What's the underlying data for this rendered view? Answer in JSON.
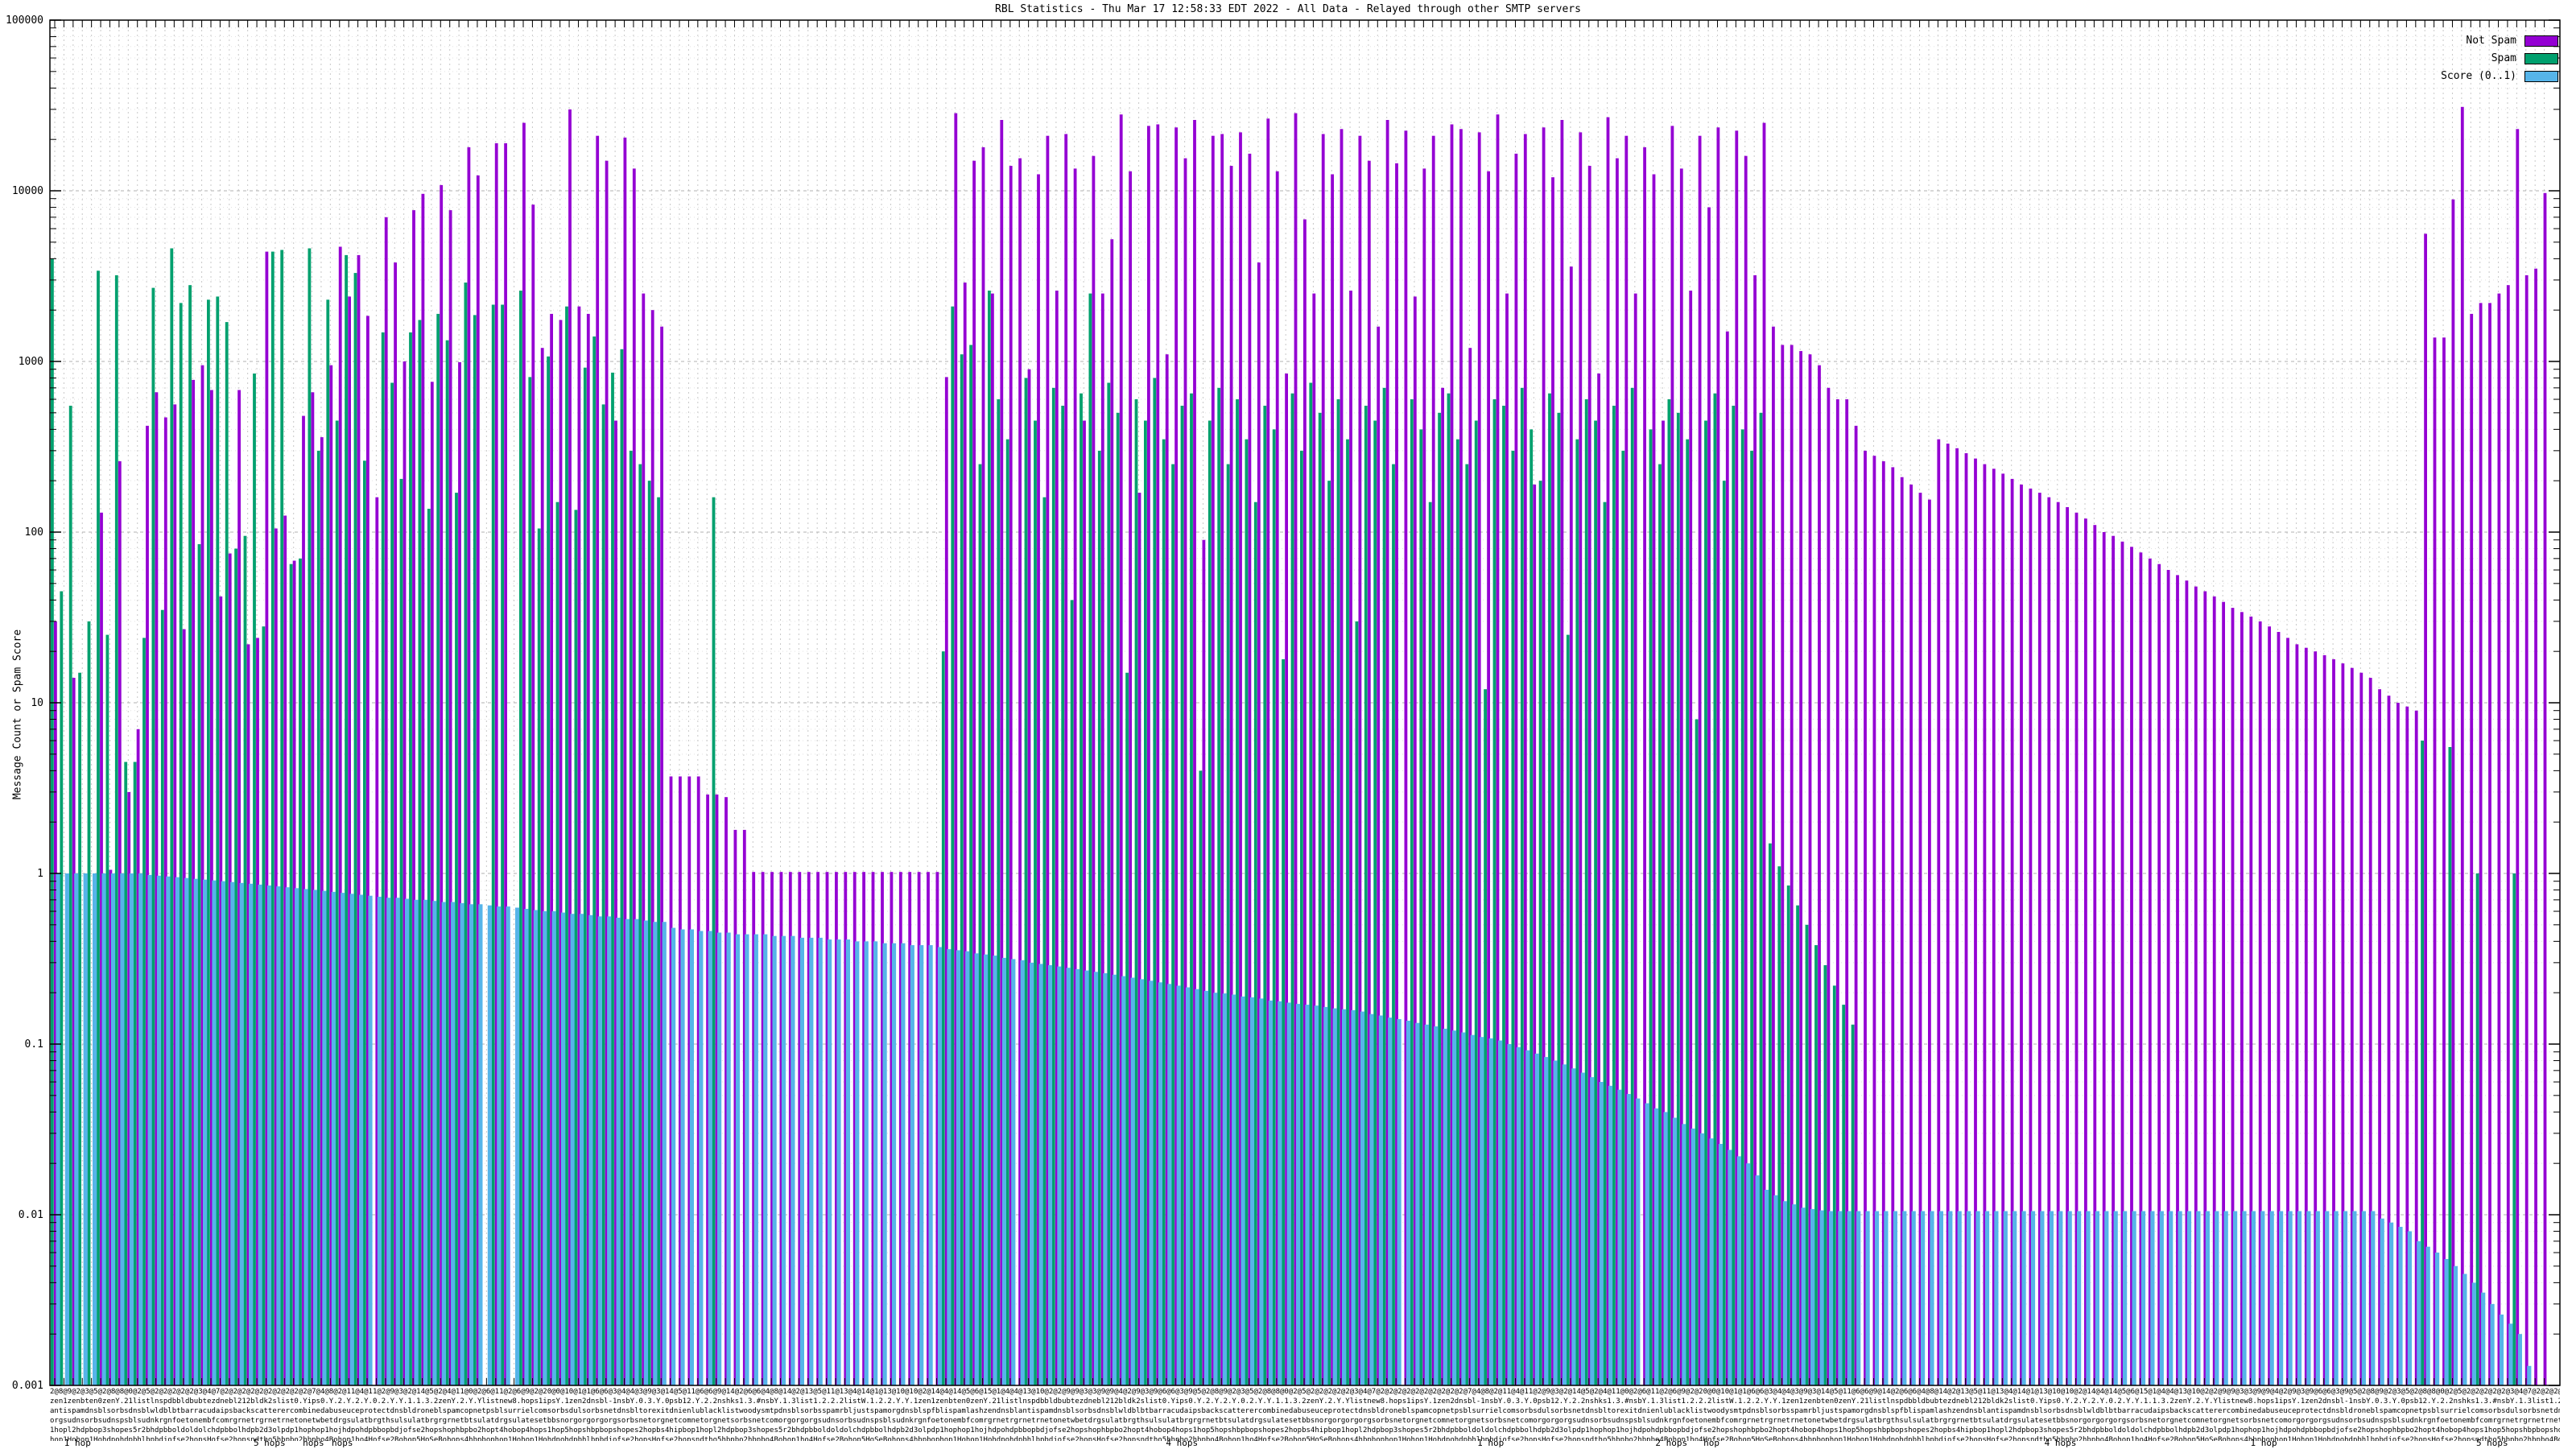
{
  "title": "RBL Statistics - Thu Mar 17 12:58:33 EDT 2022 - All Data - Relayed through other SMTP servers",
  "ylabel": "Message Count or Spam Score",
  "legend": {
    "entries": [
      {
        "label": "Not Spam",
        "color": "#9400d3"
      },
      {
        "label": "Spam",
        "color": "#00a06e"
      },
      {
        "label": "Score (0..1)",
        "color": "#56b4e9"
      }
    ]
  },
  "axis": {
    "ytick_labels": [
      "100000",
      "10000",
      "1000",
      "100",
      "10",
      "1",
      "0.1",
      "0.01",
      "0.001"
    ],
    "y_min": 0.001,
    "y_max": 100000,
    "grid": "log dashed horizontal majors, dotted minors, dashed vertical per group",
    "xtick_counts_row": "2@8@9@2@3@5@2@8@8@0@2@5@2@2@2@2@2@3@4@7@2@2@2@2@2@2@2@2@2@2@7@4@8@2@11@4@11@2@9@3@2@14@5@2@4@11@0@2@6@11@2@6@9@2@20@0@10@1@1@6@6@3@4@4@3@9@3@14@5@11@6@6@9@14@2@6@6@4@8@14@2@13@5@11@13@4@14@1@13@10@10@2@14@4@14@5@6@15@1@4@4@13@10@2@2@9@9@3@3@9@9@4@2@9@3@9@6@6@3@9@5@",
    "xtick_noise_rows": [
      "zen1zenbten0zenY.21listlnspdbbldbubtezdnebl212bldk2slist0.Yips0.Y.2.Y.2.Y.0.2.Y.Y.1.1.3.2zenY.2.Y.Ylistnew8.hops1ipsY.1zen2dnsbl-1nsbY.0.3.Y.0psb12.Y.2.2nshks1.3.#nsbY.1.3list1.2.2.2listW.1.2.2.Y.Y.1",
      "antispamdnsblsorbsdnsblwldblbtbarracudaipsbackscatterercombinedabuseuceprotectdnsbldroneblspamcopnetpsblsurrielcomsorbsdulsorbsnetdnsbltorexitdnienlublacklistwoodysmtpdnsblsorbsspamrbljustspamorgdnsblspfblispamlashzendnsbl",
      "orgsudnsorbsudnspsblsudnkrgnfoetonembfcomrgrnetrgrnetrnetonetwbetdrgsulatbrgthsulsulatbrgrgrnetbtsulatdrgsulatesetbbsnorgorgorgorgsorbsnetorgnetcomnetorgnetsorbsnetcomorgorg",
      "1hopl2hdpbop3shopes5r2bhdpbboldoldolchdpbbolhdpb2d3olpdp1hophop1hojhdpohdpbbopbdjofse2hopshophbpbo2hopt4hobop4hops1hop5hopshbpbopshopes2hopbs4hipbop",
      "hop1Hohop1Hohdpohdpbhlbpbdjofse2hopsHofse2hopsndthо5hbpbо2hbpbо4Bohop1ho4Hofse2Bohop5HoSeBohops4hbpbop"
    ],
    "bottom_row_labels": [
      {
        "text": "1 hop",
        "xfrac": 0.011
      },
      {
        "text": "5 hops",
        "xfrac": 0.0875
      },
      {
        "text": "hops",
        "xfrac": 0.105
      },
      {
        "text": "hops",
        "xfrac": 0.1165
      },
      {
        "text": "4 hops",
        "xfrac": 0.451
      },
      {
        "text": "1 hop",
        "xfrac": 0.574
      },
      {
        "text": "2 hops",
        "xfrac": 0.646
      },
      {
        "text": "hop",
        "xfrac": 0.662
      },
      {
        "text": "4 hops",
        "xfrac": 0.801
      },
      {
        "text": "1 hop",
        "xfrac": 0.882
      },
      {
        "text": "5 hops",
        "xfrac": 0.973
      }
    ]
  },
  "chart_data": {
    "type": "bar",
    "scale": "log10",
    "ylim": [
      0.001,
      100000
    ],
    "title": "RBL Statistics - Thu Mar 17 12:58:33 EDT 2022 - All Data - Relayed through other SMTP servers",
    "xlabel": "",
    "ylabel": "Message Count or Spam Score",
    "legend_position": "top-right inside",
    "n_groups": 272,
    "colors": {
      "not_spam": "#9400d3",
      "spam": "#00a06e",
      "score": "#56b4e9",
      "grid_major": "#b0b0b0",
      "grid_minor": "#e2e2e2",
      "grid_vertical": "#c8c8c8",
      "border": "#000000"
    },
    "series": [
      {
        "name": "Not Spam",
        "key": "not_spam",
        "values": [
          30,
          null,
          14,
          null,
          null,
          130,
          1.05,
          260,
          3,
          7,
          420,
          660,
          470,
          560,
          27,
          780,
          950,
          680,
          42,
          75,
          680,
          22,
          24,
          4400,
          105,
          125,
          68,
          480,
          660,
          360,
          950,
          4700,
          2400,
          4200,
          1850,
          160,
          7000,
          3800,
          1000,
          7700,
          9600,
          760,
          10800,
          7700,
          990,
          18000,
          12300,
          null,
          19000,
          19000,
          null,
          25000,
          8300,
          1200,
          1900,
          1750,
          30000,
          2100,
          1900,
          21000,
          15000,
          450,
          20500,
          13500,
          2500,
          2000,
          1600,
          3.7,
          3.7,
          3.7,
          3.7,
          2.9,
          2.9,
          2.8,
          1.8,
          1.8,
          1.02,
          1.02,
          1.02,
          1.02,
          1.02,
          1.02,
          1.02,
          1.02,
          1.02,
          1.02,
          1.02,
          1.02,
          1.02,
          1.02,
          1.02,
          1.02,
          1.02,
          1.02,
          1.02,
          1.02,
          1.02,
          810,
          28500,
          2900,
          15000,
          18000,
          2500,
          26000,
          14000,
          15500,
          900,
          12500,
          21000,
          2600,
          21500,
          13500,
          450,
          16000,
          2500,
          5200,
          28000,
          13000,
          170,
          24000,
          24500,
          1100,
          23500,
          15500,
          26000,
          90,
          21000,
          21500,
          14000,
          22000,
          16500,
          3800,
          26500,
          13000,
          850,
          28500,
          6800,
          2500,
          21500,
          12500,
          23000,
          2600,
          21000,
          15000,
          1600,
          26000,
          14500,
          22500,
          2400,
          13500,
          21000,
          700,
          24500,
          23000,
          1200,
          22000,
          13000,
          28000,
          2500,
          16500,
          21500,
          190,
          23500,
          12000,
          26000,
          3600,
          22000,
          14000,
          850,
          27000,
          15500,
          21000,
          2500,
          18000,
          12500,
          450,
          24000,
          13500,
          2600,
          21000,
          8000,
          23500,
          1500,
          22500,
          16000,
          3200,
          25000,
          1600,
          1250,
          1250,
          1150,
          1100,
          950,
          700,
          600,
          600,
          420,
          300,
          280,
          260,
          240,
          210,
          190,
          170,
          155,
          350,
          330,
          310,
          290,
          270,
          250,
          235,
          220,
          205,
          190,
          180,
          170,
          160,
          150,
          140,
          130,
          120,
          110,
          100,
          95,
          88,
          82,
          76,
          70,
          65,
          60,
          56,
          52,
          48,
          45,
          42,
          39,
          36,
          34,
          32,
          30,
          28,
          26,
          24,
          22,
          21,
          20,
          19,
          18,
          17,
          16,
          15,
          14,
          12,
          11,
          10,
          9.5,
          9,
          5600,
          1380,
          1380,
          8900,
          31000,
          1900,
          2200,
          2200,
          2500,
          2800,
          23000,
          3200,
          3500,
          9700
        ]
      },
      {
        "name": "Spam",
        "key": "spam",
        "values": [
          4000,
          45,
          550,
          15,
          30,
          3400,
          25,
          3200,
          4.5,
          4.5,
          24,
          2700,
          35,
          4600,
          2200,
          2800,
          85,
          2300,
          2400,
          1700,
          80,
          95,
          850,
          28,
          4400,
          4500,
          65,
          70,
          4600,
          300,
          2300,
          450,
          4200,
          3300,
          262,
          null,
          1480,
          750,
          205,
          1480,
          1750,
          137,
          1900,
          1330,
          170,
          2900,
          1870,
          null,
          2150,
          2150,
          null,
          2600,
          810,
          105,
          1070,
          150,
          2100,
          135,
          920,
          1400,
          560,
          860,
          1180,
          300,
          250,
          200,
          160,
          null,
          null,
          null,
          null,
          null,
          160,
          null,
          null,
          null,
          null,
          null,
          null,
          null,
          null,
          null,
          null,
          null,
          null,
          null,
          null,
          null,
          null,
          null,
          null,
          null,
          null,
          null,
          null,
          null,
          null,
          20,
          2100,
          1100,
          1250,
          250,
          2600,
          600,
          350,
          null,
          800,
          450,
          160,
          700,
          550,
          40,
          650,
          2500,
          300,
          750,
          500,
          15,
          600,
          450,
          800,
          350,
          250,
          550,
          650,
          4,
          450,
          700,
          250,
          600,
          350,
          150,
          550,
          400,
          18,
          650,
          300,
          750,
          500,
          200,
          600,
          350,
          30,
          550,
          450,
          700,
          250,
          null,
          600,
          400,
          150,
          500,
          650,
          350,
          250,
          450,
          12,
          600,
          550,
          300,
          700,
          400,
          200,
          650,
          500,
          25,
          350,
          600,
          450,
          150,
          550,
          300,
          700,
          null,
          400,
          250,
          600,
          500,
          350,
          8,
          450,
          650,
          200,
          550,
          400,
          300,
          500,
          1.5,
          1.1,
          0.85,
          0.65,
          0.5,
          0.38,
          0.29,
          0.22,
          0.17,
          0.13,
          null,
          null,
          null,
          null,
          null,
          null,
          null,
          null,
          null,
          null,
          null,
          null,
          null,
          null,
          null,
          null,
          null,
          null,
          null,
          null,
          null,
          null,
          null,
          null,
          null,
          null,
          null,
          null,
          null,
          null,
          null,
          null,
          null,
          null,
          null,
          null,
          null,
          null,
          null,
          null,
          null,
          null,
          null,
          null,
          null,
          null,
          null,
          null,
          null,
          null,
          null,
          null,
          null,
          null,
          null,
          null,
          null,
          null,
          null,
          null,
          null,
          6,
          null,
          null,
          5.5,
          null,
          null,
          1,
          null,
          null,
          null,
          1,
          null,
          null,
          null
        ]
      },
      {
        "name": "Score (0..1)",
        "key": "score",
        "values": [
          1,
          1,
          1,
          1,
          1,
          1,
          1,
          1,
          1,
          1,
          0.98,
          0.97,
          0.96,
          0.95,
          0.94,
          0.93,
          0.92,
          0.91,
          0.9,
          0.89,
          0.88,
          0.87,
          0.86,
          0.85,
          0.84,
          0.83,
          0.82,
          0.81,
          0.8,
          0.79,
          0.78,
          0.77,
          0.76,
          0.75,
          0.74,
          0.73,
          0.72,
          0.72,
          0.71,
          0.7,
          0.7,
          0.69,
          0.68,
          0.68,
          0.67,
          0.66,
          0.66,
          0.65,
          0.64,
          0.64,
          0.63,
          0.62,
          0.61,
          0.6,
          0.6,
          0.59,
          0.58,
          0.58,
          0.57,
          0.56,
          0.56,
          0.55,
          0.54,
          0.54,
          0.53,
          0.52,
          0.52,
          0.48,
          0.47,
          0.47,
          0.46,
          0.46,
          0.45,
          0.45,
          0.44,
          0.44,
          0.44,
          0.44,
          0.43,
          0.43,
          0.43,
          0.42,
          0.42,
          0.42,
          0.41,
          0.41,
          0.41,
          0.4,
          0.4,
          0.4,
          0.39,
          0.39,
          0.39,
          0.38,
          0.38,
          0.38,
          0.37,
          0.36,
          0.355,
          0.35,
          0.34,
          0.335,
          0.33,
          0.32,
          0.315,
          0.31,
          0.3,
          0.295,
          0.29,
          0.285,
          0.28,
          0.275,
          0.27,
          0.265,
          0.26,
          0.255,
          0.25,
          0.245,
          0.24,
          0.235,
          0.23,
          0.225,
          0.22,
          0.215,
          0.21,
          0.205,
          0.2,
          0.198,
          0.195,
          0.19,
          0.188,
          0.185,
          0.18,
          0.178,
          0.175,
          0.172,
          0.17,
          0.168,
          0.165,
          0.162,
          0.16,
          0.158,
          0.155,
          0.15,
          0.147,
          0.143,
          0.14,
          0.137,
          0.133,
          0.13,
          0.127,
          0.123,
          0.12,
          0.117,
          0.113,
          0.11,
          0.108,
          0.105,
          0.1,
          0.096,
          0.092,
          0.088,
          0.084,
          0.08,
          0.076,
          0.072,
          0.068,
          0.064,
          0.06,
          0.057,
          0.054,
          0.051,
          0.048,
          0.045,
          0.042,
          0.04,
          0.037,
          0.034,
          0.032,
          0.03,
          0.028,
          0.026,
          0.024,
          0.022,
          0.02,
          0.017,
          0.014,
          0.013,
          0.012,
          0.0115,
          0.011,
          0.0108,
          0.0106,
          0.0105,
          0.0105,
          0.0105,
          0.0105,
          0.0105,
          0.0105,
          0.0105,
          0.0105,
          0.0105,
          0.0105,
          0.0105,
          0.0105,
          0.0105,
          0.0105,
          0.0105,
          0.0105,
          0.0105,
          0.0105,
          0.0105,
          0.0105,
          0.0105,
          0.0105,
          0.0105,
          0.0105,
          0.0105,
          0.0105,
          0.0105,
          0.0105,
          0.0105,
          0.0105,
          0.0105,
          0.0105,
          0.0105,
          0.0105,
          0.0105,
          0.0105,
          0.0105,
          0.0105,
          0.0105,
          0.0105,
          0.0105,
          0.0105,
          0.0105,
          0.0105,
          0.0105,
          0.0105,
          0.0105,
          0.0105,
          0.0105,
          0.0105,
          0.0105,
          0.0105,
          0.0105,
          0.0105,
          0.0105,
          0.0105,
          0.0105,
          0.0105,
          0.0105,
          0.0105,
          0.0095,
          0.009,
          0.0085,
          0.008,
          0.007,
          0.0065,
          0.006,
          0.0055,
          0.005,
          0.0045,
          0.004,
          0.0035,
          0.003,
          0.0026,
          0.0023,
          0.002,
          0.0013
        ]
      }
    ]
  }
}
